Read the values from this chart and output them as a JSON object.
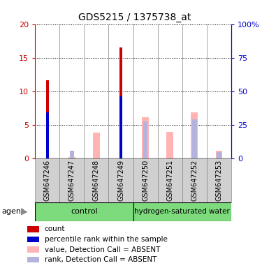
{
  "title": "GDS5215 / 1375738_at",
  "samples": [
    "GSM647246",
    "GSM647247",
    "GSM647248",
    "GSM647249",
    "GSM647250",
    "GSM647251",
    "GSM647252",
    "GSM647253"
  ],
  "red_bars": [
    11.6,
    0,
    0,
    16.5,
    0,
    0,
    0,
    0
  ],
  "blue_bars": [
    6.8,
    0,
    0,
    9.2,
    0,
    0,
    0,
    0
  ],
  "pink_bars": [
    0,
    0.2,
    3.8,
    0,
    6.1,
    3.9,
    6.8,
    1.1
  ],
  "lavender_bars": [
    0,
    1.1,
    0,
    0,
    5.5,
    0,
    5.8,
    0.9
  ],
  "ylim_left": [
    0,
    20
  ],
  "ylim_right": [
    0,
    100
  ],
  "yticks_left": [
    0,
    5,
    10,
    15,
    20
  ],
  "yticks_right": [
    0,
    25,
    50,
    75,
    100
  ],
  "ytick_labels_right": [
    "0",
    "25",
    "50",
    "75",
    "100%"
  ],
  "color_red": "#cc0000",
  "color_blue": "#0000cc",
  "color_pink": "#ffb3b3",
  "color_lavender": "#b3b3dd",
  "color_gray_box": "#d0d0d0",
  "color_green": "#7ddb7d",
  "legend_labels": [
    "count",
    "percentile rank within the sample",
    "value, Detection Call = ABSENT",
    "rank, Detection Call = ABSENT"
  ],
  "n_control": 4,
  "n_hydrogen": 4
}
